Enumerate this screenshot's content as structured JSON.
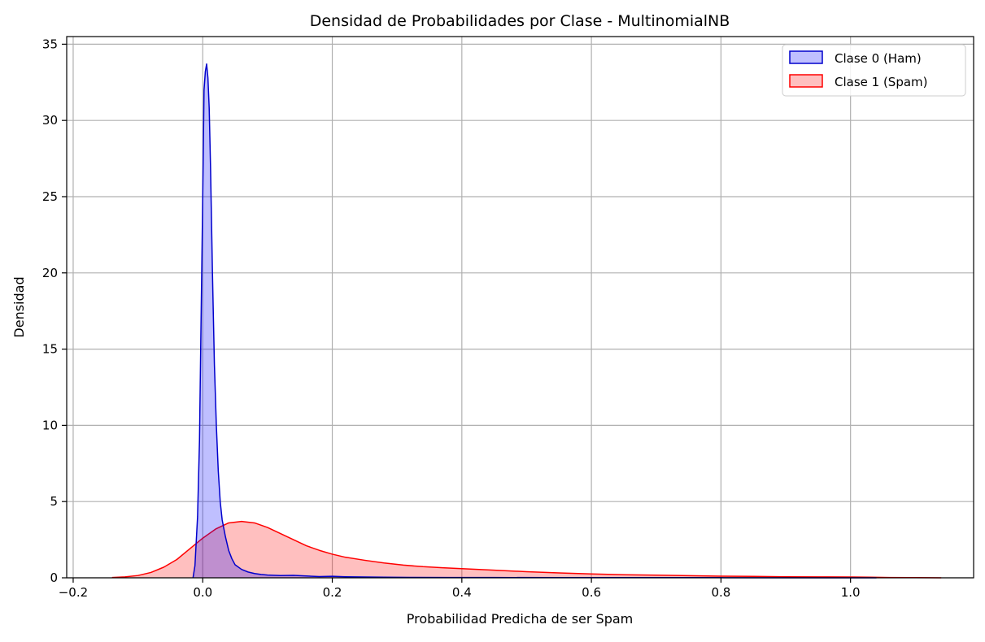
{
  "chart_data": {
    "type": "area",
    "title": "Densidad de Probabilidades por Clase - MultinomialNB",
    "xlabel": "Probabilidad Predicha de ser Spam",
    "ylabel": "Densidad",
    "xlim": [
      -0.21,
      1.19
    ],
    "ylim": [
      0,
      35.5
    ],
    "x_ticks": [
      -0.2,
      0.0,
      0.2,
      0.4,
      0.6,
      0.8,
      1.0
    ],
    "x_tick_labels": [
      "−0.2",
      "0.0",
      "0.2",
      "0.4",
      "0.6",
      "0.8",
      "1.0"
    ],
    "y_ticks": [
      0,
      5,
      10,
      15,
      20,
      25,
      30,
      35
    ],
    "y_tick_labels": [
      "0",
      "5",
      "10",
      "15",
      "20",
      "25",
      "30",
      "35"
    ],
    "grid": true,
    "legend_position": "top-right",
    "series": [
      {
        "name": "Clase 0 (Ham)",
        "line_color": "#0000cc",
        "fill_color": "#0000ff",
        "fill_opacity": 0.25,
        "x": [
          -0.015,
          -0.012,
          -0.008,
          -0.005,
          -0.003,
          0.0,
          0.002,
          0.004,
          0.006,
          0.008,
          0.01,
          0.012,
          0.015,
          0.018,
          0.021,
          0.024,
          0.027,
          0.03,
          0.035,
          0.04,
          0.045,
          0.05,
          0.06,
          0.07,
          0.08,
          0.09,
          0.1,
          0.12,
          0.14,
          0.16,
          0.18,
          0.2,
          0.22,
          0.25,
          0.28,
          0.32,
          0.38,
          0.45,
          0.55,
          0.65,
          0.8,
          1.0,
          1.04
        ],
        "y": [
          0,
          0.8,
          4.0,
          9.0,
          15.5,
          25.0,
          32.0,
          33.2,
          33.7,
          32.8,
          30.8,
          27.0,
          20.0,
          14.0,
          10.0,
          7.0,
          5.0,
          3.8,
          2.7,
          1.8,
          1.25,
          0.85,
          0.55,
          0.38,
          0.28,
          0.22,
          0.18,
          0.15,
          0.16,
          0.12,
          0.08,
          0.1,
          0.07,
          0.05,
          0.04,
          0.03,
          0.02,
          0.02,
          0.01,
          0.01,
          0.01,
          0.0,
          0.0
        ]
      },
      {
        "name": "Clase 1 (Spam)",
        "line_color": "#ff0000",
        "fill_color": "#ff0000",
        "fill_opacity": 0.25,
        "x": [
          -0.14,
          -0.12,
          -0.1,
          -0.08,
          -0.06,
          -0.04,
          -0.02,
          0.0,
          0.02,
          0.04,
          0.06,
          0.08,
          0.1,
          0.12,
          0.14,
          0.16,
          0.18,
          0.2,
          0.22,
          0.25,
          0.28,
          0.31,
          0.34,
          0.37,
          0.4,
          0.45,
          0.5,
          0.55,
          0.6,
          0.65,
          0.7,
          0.75,
          0.8,
          0.85,
          0.9,
          0.95,
          1.0,
          1.03,
          1.06,
          1.1,
          1.14
        ],
        "y": [
          0.02,
          0.06,
          0.15,
          0.35,
          0.7,
          1.2,
          1.9,
          2.6,
          3.2,
          3.6,
          3.7,
          3.6,
          3.3,
          2.9,
          2.5,
          2.1,
          1.8,
          1.55,
          1.35,
          1.15,
          0.97,
          0.83,
          0.73,
          0.66,
          0.6,
          0.5,
          0.4,
          0.32,
          0.25,
          0.2,
          0.17,
          0.14,
          0.11,
          0.09,
          0.07,
          0.06,
          0.05,
          0.04,
          0.02,
          0.01,
          0.0
        ]
      }
    ]
  }
}
